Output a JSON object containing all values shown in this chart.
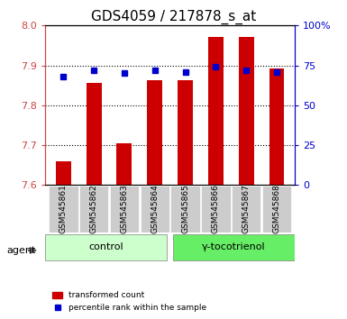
{
  "title": "GDS4059 / 217878_s_at",
  "samples": [
    "GSM545861",
    "GSM545862",
    "GSM545863",
    "GSM545864",
    "GSM545865",
    "GSM545866",
    "GSM545867",
    "GSM545868"
  ],
  "red_values": [
    7.66,
    7.855,
    7.705,
    7.862,
    7.862,
    7.972,
    7.972,
    7.892
  ],
  "blue_values": [
    68,
    72,
    70,
    72,
    71,
    74,
    72,
    71
  ],
  "ylim_left": [
    7.6,
    8.0
  ],
  "ylim_right": [
    0,
    100
  ],
  "yticks_left": [
    7.6,
    7.7,
    7.8,
    7.9,
    8.0
  ],
  "yticks_right": [
    0,
    25,
    50,
    75,
    100
  ],
  "ytick_labels_right": [
    "0",
    "25",
    "50",
    "75",
    "100%"
  ],
  "bar_color": "#cc0000",
  "dot_color": "#0000cc",
  "bar_width": 0.5,
  "control_label": "control",
  "treatment_label": "γ-tocotrienol",
  "agent_label": "agent",
  "control_indices": [
    0,
    1,
    2,
    3
  ],
  "treatment_indices": [
    4,
    5,
    6,
    7
  ],
  "control_bg": "#ccffcc",
  "treatment_bg": "#66ee66",
  "sample_bg": "#cccccc",
  "legend_red": "transformed count",
  "legend_blue": "percentile rank within the sample"
}
